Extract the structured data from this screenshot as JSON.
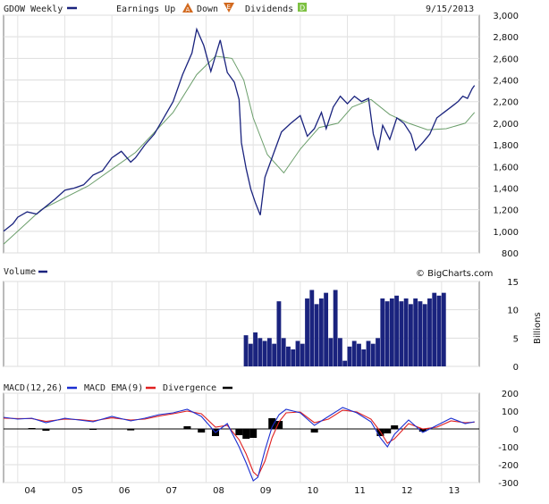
{
  "header": {
    "symbol": "GDOW Weekly",
    "earnings_up_label": "Earnings Up",
    "earnings_down_label": "Down",
    "dividends_label": "Dividends",
    "date": "9/15/2013",
    "watermark": "© BigCharts.com"
  },
  "icons": {
    "earnings_up": "A-triangle-icon",
    "earnings_down": "E-inverted-triangle-icon",
    "dividends": "D-square-icon"
  },
  "colors": {
    "price_line": "#1a237e",
    "moving_average": "#6b9e6b",
    "volume_bars": "#1a237e",
    "macd_line": "#1c2fd1",
    "ema_line": "#e02020",
    "divergence": "#000000",
    "legend_marker": "#1a237e"
  },
  "chart_data": [
    {
      "type": "line",
      "panel": "price",
      "title": "GDOW Weekly",
      "x_ticks": [
        "04",
        "05",
        "06",
        "07",
        "08",
        "09",
        "10",
        "11",
        "12",
        "13"
      ],
      "y_ticks": [
        "800",
        "1,000",
        "1,200",
        "1,400",
        "1,600",
        "1,800",
        "2,000",
        "2,200",
        "2,400",
        "2,600",
        "2,800",
        "3,000"
      ],
      "ylim": [
        800,
        3000
      ],
      "xlim": [
        2003.7,
        2013.8
      ],
      "grid": true,
      "series": [
        {
          "x": [
            2003.7,
            2003.9,
            2004.0,
            2004.2,
            2004.4,
            2004.6,
            2004.8,
            2005.0,
            2005.2,
            2005.4,
            2005.6,
            2005.8,
            2006.0,
            2006.2,
            2006.4,
            2006.5,
            2006.7,
            2006.9,
            2007.1,
            2007.3,
            2007.5,
            2007.7,
            2007.8,
            2007.95,
            2008.1,
            2008.3,
            2008.45,
            2008.6,
            2008.7,
            2008.75,
            2008.85,
            2008.95,
            2009.05,
            2009.15,
            2009.25,
            2009.4,
            2009.5,
            2009.6,
            2009.8,
            2010.0,
            2010.15,
            2010.3,
            2010.45,
            2010.55,
            2010.7,
            2010.85,
            2011.0,
            2011.15,
            2011.3,
            2011.45,
            2011.55,
            2011.65,
            2011.75,
            2011.9,
            2012.05,
            2012.2,
            2012.35,
            2012.45,
            2012.6,
            2012.75,
            2012.9,
            2013.05,
            2013.2,
            2013.35,
            2013.45,
            2013.55,
            2013.65,
            2013.7
          ],
          "values": [
            1000,
            1070,
            1130,
            1180,
            1160,
            1230,
            1300,
            1380,
            1400,
            1430,
            1520,
            1560,
            1680,
            1740,
            1640,
            1680,
            1800,
            1900,
            2050,
            2200,
            2450,
            2650,
            2870,
            2720,
            2480,
            2770,
            2470,
            2380,
            2220,
            1820,
            1580,
            1390,
            1260,
            1150,
            1500,
            1680,
            1800,
            1920,
            2000,
            2070,
            1880,
            1950,
            2100,
            1950,
            2150,
            2250,
            2180,
            2250,
            2200,
            2230,
            1900,
            1750,
            1980,
            1850,
            2050,
            2000,
            1900,
            1750,
            1820,
            1900,
            2050,
            2100,
            2150,
            2200,
            2250,
            2230,
            2320,
            2350
          ]
        },
        {
          "x": [
            2003.7,
            2004.5,
            2005.5,
            2006.5,
            2007.3,
            2007.8,
            2008.2,
            2008.55,
            2008.8,
            2009.0,
            2009.3,
            2009.65,
            2010.0,
            2010.4,
            2010.8,
            2011.1,
            2011.5,
            2011.9,
            2012.3,
            2012.7,
            2013.1,
            2013.5,
            2013.7
          ],
          "values": [
            880,
            1200,
            1420,
            1730,
            2100,
            2450,
            2620,
            2600,
            2400,
            2050,
            1710,
            1540,
            1760,
            1960,
            2000,
            2150,
            2220,
            2080,
            2000,
            1940,
            1950,
            2000,
            2100
          ]
        }
      ]
    },
    {
      "type": "bar",
      "panel": "volume",
      "title": "Volume",
      "ylabel": "Billions",
      "y_ticks": [
        "0",
        "5",
        "10",
        "15"
      ],
      "ylim": [
        0,
        15
      ],
      "grid": true,
      "series": [
        {
          "x": [
            2008.8,
            2008.9,
            2009.0,
            2009.1,
            2009.2,
            2009.3,
            2009.4,
            2009.5,
            2009.6,
            2009.7,
            2009.8,
            2009.9,
            2010.0,
            2010.1,
            2010.2,
            2010.3,
            2010.4,
            2010.5,
            2010.6,
            2010.7,
            2010.8,
            2010.9,
            2011.0,
            2011.1,
            2011.2,
            2011.3,
            2011.4,
            2011.5,
            2011.6,
            2011.7,
            2011.8,
            2011.9,
            2012.0,
            2012.1,
            2012.2,
            2012.3,
            2012.4,
            2012.5,
            2012.6,
            2012.7,
            2012.8,
            2012.9,
            2013.0
          ],
          "values": [
            5.5,
            4.0,
            6.0,
            5.0,
            4.5,
            5.0,
            4.0,
            11.5,
            5.0,
            3.5,
            3.0,
            4.5,
            4.0,
            12.0,
            13.5,
            11.0,
            12.0,
            13.0,
            5.0,
            13.5,
            5.0,
            1.0,
            3.5,
            4.5,
            4.0,
            3.0,
            4.5,
            4.0,
            5.0,
            12.0,
            11.5,
            12.0,
            12.5,
            11.5,
            12.0,
            11.0,
            12.0,
            11.5,
            11.0,
            12.0,
            13.0,
            12.5,
            13.0
          ]
        }
      ]
    },
    {
      "type": "line",
      "panel": "macd",
      "legend": [
        "MACD(12,26)",
        "MACD EMA(9)",
        "Divergence"
      ],
      "y_ticks": [
        "-300",
        "-200",
        "-100",
        "0",
        "100",
        "200"
      ],
      "ylim": [
        -300,
        200
      ],
      "grid": true,
      "series": [
        {
          "name": "MACD(12,26)",
          "x": [
            2003.7,
            2004.0,
            2004.3,
            2004.6,
            2005.0,
            2005.3,
            2005.6,
            2006.0,
            2006.4,
            2006.7,
            2007.0,
            2007.3,
            2007.6,
            2007.9,
            2008.2,
            2008.45,
            2008.7,
            2008.85,
            2009.0,
            2009.1,
            2009.25,
            2009.4,
            2009.55,
            2009.7,
            2010.0,
            2010.3,
            2010.6,
            2010.9,
            2011.2,
            2011.5,
            2011.7,
            2011.85,
            2012.0,
            2012.3,
            2012.6,
            2012.9,
            2013.2,
            2013.5,
            2013.7
          ],
          "values": [
            65,
            55,
            60,
            35,
            60,
            50,
            40,
            70,
            45,
            60,
            80,
            90,
            110,
            70,
            -20,
            30,
            -100,
            -190,
            -290,
            -270,
            -120,
            10,
            80,
            110,
            90,
            20,
            70,
            120,
            90,
            40,
            -50,
            -100,
            -30,
            50,
            -20,
            20,
            60,
            30,
            40
          ]
        },
        {
          "name": "MACD EMA(9)",
          "x": [
            2003.7,
            2004.0,
            2004.3,
            2004.6,
            2005.0,
            2005.3,
            2005.6,
            2006.0,
            2006.4,
            2006.7,
            2007.0,
            2007.3,
            2007.6,
            2007.9,
            2008.2,
            2008.45,
            2008.7,
            2008.85,
            2009.0,
            2009.1,
            2009.25,
            2009.4,
            2009.55,
            2009.7,
            2010.0,
            2010.3,
            2010.6,
            2010.9,
            2011.2,
            2011.5,
            2011.7,
            2011.85,
            2012.0,
            2012.3,
            2012.6,
            2012.9,
            2013.2,
            2013.5,
            2013.7
          ],
          "values": [
            60,
            58,
            58,
            42,
            55,
            52,
            45,
            62,
            50,
            55,
            72,
            85,
            100,
            85,
            10,
            20,
            -60,
            -140,
            -240,
            -265,
            -180,
            -50,
            40,
            90,
            95,
            35,
            55,
            105,
            95,
            55,
            -15,
            -80,
            -55,
            30,
            0,
            10,
            45,
            35,
            38
          ]
        },
        {
          "name": "Divergence",
          "x": [
            2004.3,
            2004.6,
            2005.6,
            2006.4,
            2007.6,
            2007.9,
            2008.2,
            2008.7,
            2008.85,
            2009.0,
            2009.4,
            2009.55,
            2010.3,
            2011.7,
            2011.85,
            2012.0,
            2012.6
          ],
          "values": [
            5,
            -10,
            -5,
            -8,
            15,
            -20,
            -40,
            -35,
            -55,
            -50,
            60,
            45,
            -20,
            -40,
            -25,
            20,
            -15
          ]
        }
      ]
    }
  ]
}
